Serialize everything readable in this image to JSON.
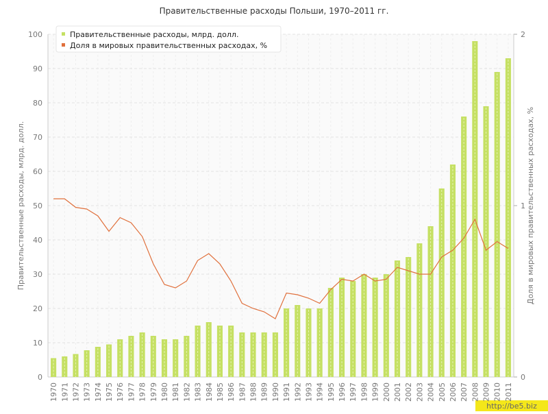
{
  "chart_data": {
    "type": "bar_line",
    "title": "Правительственные расходы Польши, 1970–2011 гг.",
    "y_label": "Правительственные расходы, млрд. долл.",
    "y2_label": "Доля в мировых правительственных расходах, %",
    "watermark": "http://be5.biz",
    "categories": [
      "1970",
      "1971",
      "1972",
      "1973",
      "1974",
      "1975",
      "1976",
      "1977",
      "1978",
      "1979",
      "1980",
      "1981",
      "1982",
      "1983",
      "1984",
      "1985",
      "1986",
      "1987",
      "1988",
      "1989",
      "1990",
      "1991",
      "1992",
      "1993",
      "1994",
      "1995",
      "1996",
      "1997",
      "1998",
      "1999",
      "2000",
      "2001",
      "2002",
      "2003",
      "2004",
      "2005",
      "2006",
      "2007",
      "2008",
      "2009",
      "2010",
      "2011"
    ],
    "series": [
      {
        "name": "Правительственные расходы, млрд. долл.",
        "type": "bar",
        "color": "#c5e063",
        "values": [
          5.5,
          6,
          6.7,
          7.8,
          8.8,
          9.5,
          11,
          12,
          13,
          12,
          11,
          11,
          12,
          15,
          16,
          15,
          15,
          13,
          13,
          13,
          13,
          20,
          21,
          20,
          20,
          26,
          29,
          28,
          30,
          29,
          30,
          34,
          35,
          39,
          44,
          55,
          62,
          76,
          98,
          79,
          89,
          93
        ]
      },
      {
        "name": "Доля в мировых правительственных расходах, %",
        "type": "line",
        "axis": "y2",
        "color": "#e0703c",
        "values": [
          1.04,
          1.04,
          0.99,
          0.98,
          0.94,
          0.85,
          0.93,
          0.9,
          0.82,
          0.66,
          0.54,
          0.52,
          0.56,
          0.68,
          0.72,
          0.66,
          0.56,
          0.43,
          0.4,
          0.38,
          0.34,
          0.49,
          0.48,
          0.46,
          0.43,
          0.51,
          0.57,
          0.56,
          0.6,
          0.56,
          0.57,
          0.64,
          0.62,
          0.6,
          0.6,
          0.7,
          0.74,
          0.81,
          0.92,
          0.74,
          0.79,
          0.75
        ]
      }
    ],
    "ylim": [
      0,
      100
    ],
    "yticks": [
      0,
      10,
      20,
      30,
      40,
      50,
      60,
      70,
      80,
      90,
      100
    ],
    "y2lim": [
      0,
      2
    ],
    "y2ticks": [
      0,
      1,
      2
    ],
    "grid": true,
    "legend": "top-left"
  }
}
